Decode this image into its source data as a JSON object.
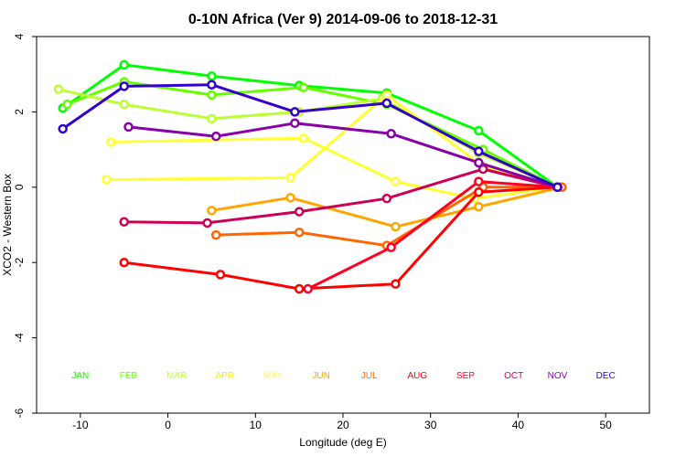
{
  "chart_data": {
    "type": "line",
    "title": "0-10N Africa (Ver 9)   2014-09-06 to 2018-12-31",
    "xlabel": "Longitude (deg E)",
    "ylabel": "XCO2 - Western Box",
    "xlim": [
      -15,
      55
    ],
    "ylim": [
      -6,
      4
    ],
    "xticks": [
      -10,
      0,
      10,
      20,
      30,
      40,
      50
    ],
    "yticks": [
      -6,
      -4,
      -2,
      0,
      2,
      4
    ],
    "grid": false,
    "legend": "bottom row of month labels",
    "month_labels": [
      {
        "label": "JAN",
        "x": -10,
        "color": "#00ff00"
      },
      {
        "label": "JAN",
        "x": -10,
        "color": "#33ff00"
      },
      {
        "label": "FEB",
        "x": -4.5,
        "color": "#66ff00"
      },
      {
        "label": "MAR",
        "x": 1,
        "color": "#bbff33"
      },
      {
        "label": "APR",
        "x": 6.5,
        "color": "#ffee00"
      },
      {
        "label": "MAY",
        "x": 12,
        "color": "#ffff33"
      },
      {
        "label": "JUN",
        "x": 17.5,
        "color": "#ffa500"
      },
      {
        "label": "JUL",
        "x": 23,
        "color": "#ff6600"
      },
      {
        "label": "AUG",
        "x": 28.5,
        "color": "#ff0000"
      },
      {
        "label": "SEP",
        "x": 34,
        "color": "#ff0022"
      },
      {
        "label": "OCT",
        "x": 39.5,
        "color": "#cc0055"
      },
      {
        "label": "NOV",
        "x": 44.5,
        "color": "#8800aa"
      },
      {
        "label": "DEC",
        "x": 50,
        "color": "#3300cc"
      }
    ],
    "series": [
      {
        "color": "#00ff00",
        "points": [
          [
            -12,
            2.1
          ],
          [
            -5,
            3.25
          ],
          [
            5,
            2.95
          ],
          [
            15,
            2.7
          ],
          [
            25,
            2.5
          ],
          [
            35.5,
            1.5
          ],
          [
            44.5,
            0.0
          ]
        ]
      },
      {
        "color": "#66ff00",
        "points": [
          [
            -11.5,
            2.2
          ],
          [
            -5,
            2.8
          ],
          [
            5,
            2.45
          ],
          [
            15.5,
            2.65
          ],
          [
            25,
            2.2
          ],
          [
            36,
            1.0
          ],
          [
            44.5,
            0.0
          ]
        ]
      },
      {
        "color": "#bbff33",
        "points": [
          [
            -12.5,
            2.6
          ],
          [
            -5,
            2.2
          ],
          [
            5,
            1.82
          ],
          [
            15,
            2.0
          ],
          [
            24.5,
            2.35
          ],
          [
            35.5,
            0.9
          ],
          [
            44.5,
            0.0
          ]
        ]
      },
      {
        "color": "#ffff33",
        "points": [
          [
            -7,
            0.2
          ],
          [
            14,
            0.25
          ],
          [
            25,
            2.45
          ],
          [
            36,
            0.55
          ],
          [
            44.5,
            0.0
          ]
        ]
      },
      {
        "color": "#ffff33",
        "points": [
          [
            -6.5,
            1.2
          ],
          [
            15.5,
            1.3
          ],
          [
            26,
            0.15
          ],
          [
            35,
            -0.3
          ],
          [
            44.5,
            0.0
          ]
        ]
      },
      {
        "color": "#ffa500",
        "points": [
          [
            5,
            -0.62
          ],
          [
            14,
            -0.28
          ],
          [
            26,
            -1.05
          ],
          [
            35.5,
            -0.52
          ],
          [
            45,
            0.0
          ]
        ]
      },
      {
        "color": "#ff6600",
        "points": [
          [
            5.5,
            -1.27
          ],
          [
            15,
            -1.2
          ],
          [
            25,
            -1.55
          ],
          [
            36,
            0.0
          ],
          [
            45,
            0.0
          ]
        ]
      },
      {
        "color": "#ff0000",
        "points": [
          [
            -5,
            -2.0
          ],
          [
            6,
            -2.32
          ],
          [
            15,
            -2.7
          ],
          [
            26,
            -2.57
          ],
          [
            35.5,
            -0.13
          ],
          [
            44.5,
            0.0
          ]
        ]
      },
      {
        "color": "#ff0022",
        "points": [
          [
            16,
            -2.7
          ],
          [
            25.5,
            -1.6
          ],
          [
            35.5,
            0.15
          ],
          [
            44.5,
            0.0
          ]
        ]
      },
      {
        "color": "#cc0055",
        "points": [
          [
            -5,
            -0.92
          ],
          [
            4.5,
            -0.95
          ],
          [
            15,
            -0.65
          ],
          [
            25,
            -0.3
          ],
          [
            36,
            0.48
          ],
          [
            44.5,
            0.0
          ]
        ]
      },
      {
        "color": "#8800aa",
        "points": [
          [
            -4.5,
            1.6
          ],
          [
            5.5,
            1.35
          ],
          [
            14.5,
            1.7
          ],
          [
            25.5,
            1.42
          ],
          [
            35.5,
            0.65
          ],
          [
            44.5,
            0.0
          ]
        ]
      },
      {
        "color": "#3300cc",
        "points": [
          [
            -12,
            1.55
          ],
          [
            -5,
            2.68
          ],
          [
            5,
            2.72
          ],
          [
            14.5,
            2.0
          ],
          [
            25,
            2.23
          ],
          [
            35.5,
            0.95
          ],
          [
            44.5,
            0.0
          ]
        ]
      }
    ]
  }
}
